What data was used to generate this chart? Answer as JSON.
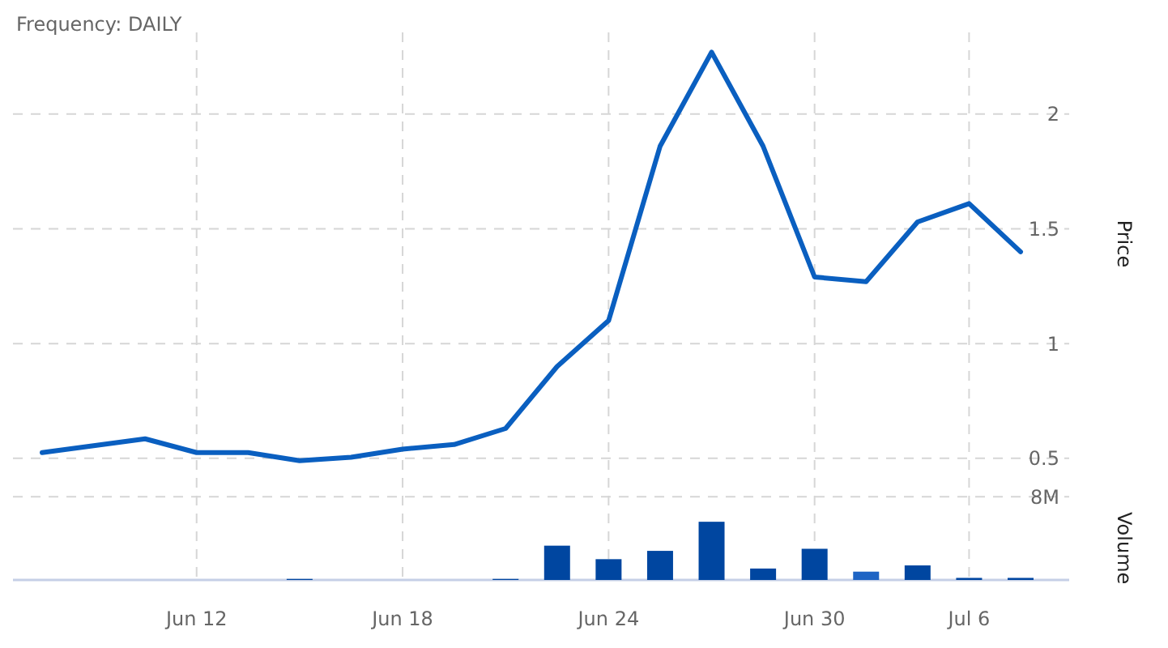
{
  "chart_data": {
    "type": "line",
    "title": "Frequency: DAILY",
    "ylabel": "Price",
    "y2label": "Volume",
    "categories": [
      null,
      null,
      null,
      "Jun 12",
      null,
      null,
      null,
      "Jun 18",
      null,
      null,
      null,
      "Jun 24",
      null,
      null,
      null,
      "Jun 30",
      null,
      null,
      "Jul 6",
      null
    ],
    "series": [
      {
        "type": "bar",
        "axis": "y2",
        "values": [
          null,
          null,
          null,
          null,
          null,
          100000,
          null,
          null,
          null,
          100000,
          3300000,
          2000000,
          2800000,
          5600000,
          1100000,
          3000000,
          800000,
          1400000,
          200000,
          200000
        ],
        "colors": [
          "#0046a0",
          "#0046a0",
          "#0046a0",
          "#0046a0",
          "#0046a0",
          "#0046a0",
          "#0046a0",
          "#0046a0",
          "#0046a0",
          "#0046a0",
          "#0046a0",
          "#0046a0",
          "#0046a0",
          "#0046a0",
          "#0046a0",
          "#0046a0",
          "#1e64c4",
          "#0046a0",
          "#0046a0",
          "#0046a0"
        ]
      },
      {
        "color": "#0a5fc0",
        "values": [
          0.525,
          0.555,
          0.585,
          0.525,
          0.525,
          0.49,
          0.505,
          0.54,
          0.56,
          0.63,
          0.9,
          1.1,
          1.86,
          2.27,
          1.86,
          1.29,
          1.27,
          1.53,
          1.61,
          1.4
        ]
      }
    ],
    "ylim": [
      -0.03,
      2.37
    ],
    "yticks": [
      0.5,
      1,
      1.5,
      2
    ],
    "y2lim": [
      0,
      53000000
    ],
    "y2ticks": [
      {
        "value": 0,
        "label": null
      },
      {
        "value": 8000000,
        "label": "8M"
      }
    ],
    "grid": true,
    "marker": "none",
    "line_style": "solid"
  }
}
